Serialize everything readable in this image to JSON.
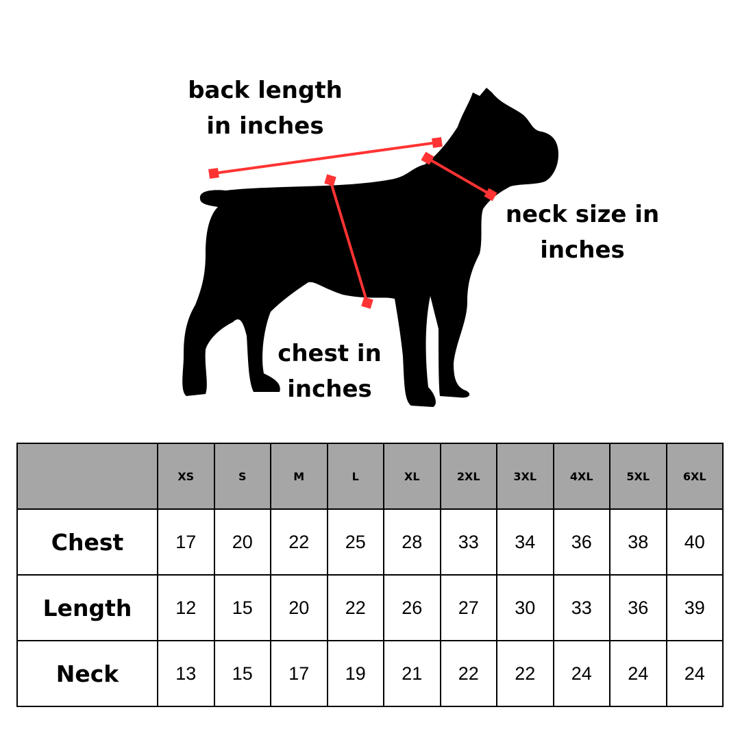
{
  "labels": {
    "back_length": "back length in inches",
    "neck_size": "neck size in inches",
    "chest": "chest in inches"
  },
  "colors": {
    "measure_line": "#ff3333",
    "header_bg": "#a6a6a6",
    "silhouette": "#000000"
  },
  "table": {
    "corner": "",
    "sizes": [
      "XS",
      "S",
      "M",
      "L",
      "XL",
      "2XL",
      "3XL",
      "4XL",
      "5XL",
      "6XL"
    ],
    "rows": [
      {
        "label": "Chest",
        "values": [
          "17",
          "20",
          "22",
          "25",
          "28",
          "33",
          "34",
          "36",
          "38",
          "40"
        ]
      },
      {
        "label": "Length",
        "values": [
          "12",
          "15",
          "20",
          "22",
          "26",
          "27",
          "30",
          "33",
          "36",
          "39"
        ]
      },
      {
        "label": "Neck",
        "values": [
          "13",
          "15",
          "17",
          "19",
          "21",
          "22",
          "22",
          "24",
          "24",
          "24"
        ]
      }
    ]
  }
}
